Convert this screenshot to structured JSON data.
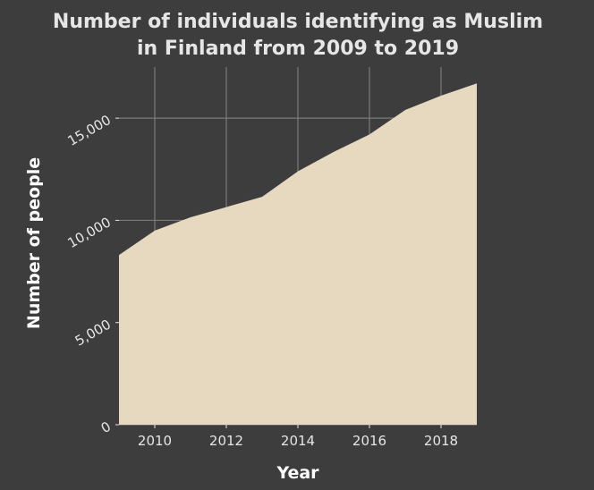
{
  "chart_data": {
    "type": "area",
    "title": "Number of individuals identifying as Muslim in Finland from 2009 to 2019",
    "title_lines": [
      "Number of individuals identifying as Muslim",
      "in Finland from 2009 to 2019"
    ],
    "xlabel": "Year",
    "ylabel": "Number of people",
    "x": [
      2009,
      2010,
      2011,
      2012,
      2013,
      2014,
      2015,
      2016,
      2017,
      2018,
      2019
    ],
    "series": [
      {
        "values": [
          8300,
          9500,
          10150,
          10650,
          11150,
          12400,
          13350,
          14200,
          15400,
          16100,
          16700
        ]
      }
    ],
    "xlim": [
      2009,
      2019
    ],
    "ylim": [
      0,
      17500
    ],
    "x_ticks": [
      2010,
      2012,
      2014,
      2016,
      2018
    ],
    "x_tick_labels": [
      "2010",
      "2012",
      "2014",
      "2016",
      "2018"
    ],
    "y_ticks": [
      0,
      5000,
      10000,
      15000
    ],
    "y_tick_labels": [
      "0",
      "5,000",
      "10,000",
      "15,000"
    ],
    "grid": true,
    "colors": {
      "background": "#3d3d3d",
      "fill": "#e6d9bf",
      "grid": "#7a7a7a",
      "text": "#e6e6e6"
    }
  }
}
